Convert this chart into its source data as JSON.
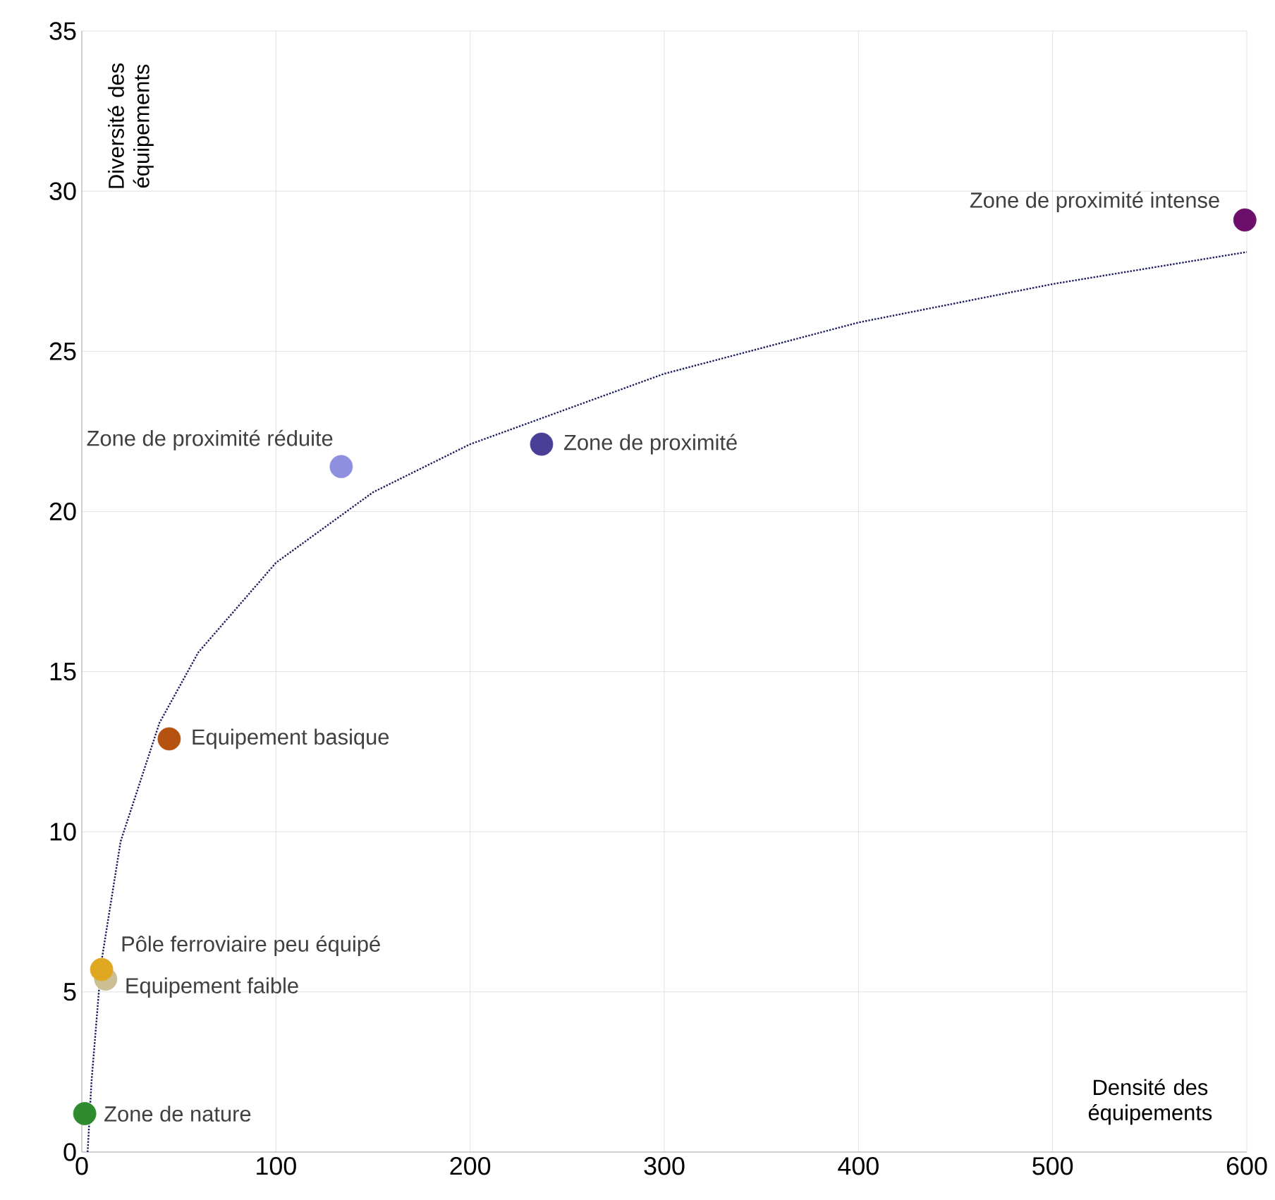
{
  "chart_data": {
    "type": "scatter",
    "xlabel": "Densité des équipements",
    "ylabel": "Diversité des équipements",
    "xlim": [
      0,
      600
    ],
    "ylim": [
      0,
      35
    ],
    "xticks": [
      0,
      100,
      200,
      300,
      400,
      500,
      600
    ],
    "yticks": [
      0,
      5,
      10,
      15,
      20,
      25,
      30,
      35
    ],
    "grid": true,
    "marker": "circle",
    "series": [
      {
        "name": "Zone de nature",
        "color": "#2e8b2e",
        "x": [
          1.5
        ],
        "values": [
          1.2
        ]
      },
      {
        "name": "Equipement faible",
        "color": "#cdbf94",
        "x": [
          12.3
        ],
        "values": [
          5.4
        ]
      },
      {
        "name": "Pôle ferroviaire peu équipé",
        "color": "#e0a820",
        "x": [
          10.2
        ],
        "values": [
          5.7
        ]
      },
      {
        "name": "Equipement basique",
        "color": "#b5520f",
        "x": [
          45
        ],
        "values": [
          12.9
        ]
      },
      {
        "name": "Zone de proximité réduite",
        "color": "#8f8fe0",
        "x": [
          133.6
        ],
        "values": [
          21.4
        ]
      },
      {
        "name": "Zone de proximité",
        "color": "#4a3f96",
        "x": [
          236.8
        ],
        "values": [
          22.1
        ]
      },
      {
        "name": "Zone de proximité intense",
        "color": "#6b0f6b",
        "x": [
          599
        ],
        "values": [
          29.1
        ]
      },
      {
        "type": "line",
        "color": "#1f1f5f",
        "line_style": "dotted",
        "marker": "none",
        "x": [
          3,
          5,
          10,
          20,
          40,
          60,
          100,
          150,
          200,
          300,
          400,
          500,
          600
        ],
        "values": [
          0,
          2.2,
          5.9,
          9.7,
          13.4,
          15.6,
          18.4,
          20.6,
          22.1,
          24.3,
          25.9,
          27.1,
          28.1
        ]
      }
    ]
  }
}
